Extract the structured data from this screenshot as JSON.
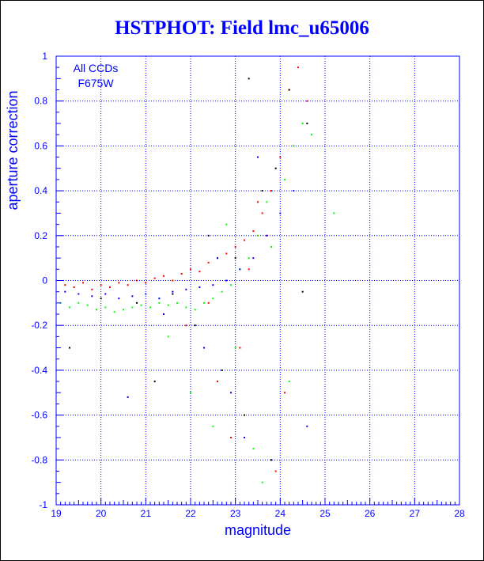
{
  "chart_data": {
    "type": "scatter",
    "title": "HSTPHOT: Field lmc_u65006",
    "xlabel": "magnitude",
    "ylabel": "aperture correction",
    "xlim": [
      19,
      28
    ],
    "ylim": [
      -1,
      1
    ],
    "x_ticks": [
      "19",
      "20",
      "21",
      "22",
      "23",
      "24",
      "25",
      "26",
      "27",
      "28"
    ],
    "y_ticks": [
      "-1",
      "-0.8",
      "-0.6",
      "-0.4",
      "-0.2",
      "0",
      "0.2",
      "0.4",
      "0.6",
      "0.8",
      "1"
    ],
    "grid": true,
    "annotations": [
      "All CCDs",
      "F675W"
    ],
    "series_colors": [
      "#ff0000",
      "#00ff00",
      "#0000ff",
      "#000000"
    ],
    "series": [
      {
        "color": "#ff0000",
        "x": [
          19.2,
          19.4,
          19.6,
          19.8,
          20.0,
          20.2,
          20.4,
          20.6,
          20.8,
          21.0,
          21.2,
          21.4,
          21.6,
          21.8,
          22.0,
          22.2,
          22.4,
          22.6,
          22.8,
          23.0,
          23.2,
          23.4,
          23.6,
          23.8,
          24.0,
          24.2,
          24.4,
          24.6,
          22.4,
          23.1,
          23.7,
          24.1,
          22.9,
          23.5,
          24.3,
          21.9,
          22.6,
          23.3,
          23.9
        ],
        "y": [
          -0.02,
          -0.03,
          -0.01,
          -0.04,
          -0.02,
          -0.03,
          -0.01,
          -0.02,
          0.0,
          -0.01,
          0.01,
          0.02,
          0.0,
          0.03,
          0.05,
          0.04,
          0.08,
          0.1,
          0.12,
          0.15,
          0.18,
          0.22,
          0.3,
          0.4,
          0.55,
          0.85,
          0.95,
          0.8,
          -0.1,
          -0.3,
          0.2,
          -0.5,
          -0.7,
          0.35,
          0.6,
          -0.2,
          -0.45,
          0.05,
          -0.85
        ]
      },
      {
        "color": "#00ff00",
        "x": [
          19.1,
          19.3,
          19.5,
          19.7,
          19.9,
          20.1,
          20.3,
          20.5,
          20.7,
          20.9,
          21.1,
          21.3,
          21.5,
          21.7,
          21.9,
          22.1,
          22.3,
          22.5,
          22.7,
          22.9,
          23.1,
          23.3,
          23.5,
          23.7,
          23.9,
          24.1,
          24.3,
          24.5,
          24.7,
          25.2,
          22.0,
          22.5,
          23.0,
          23.4,
          23.8,
          24.2,
          21.5,
          22.8,
          23.6
        ],
        "y": [
          -0.1,
          -0.12,
          -0.1,
          -0.11,
          -0.13,
          -0.12,
          -0.14,
          -0.13,
          -0.12,
          -0.11,
          -0.12,
          -0.1,
          -0.11,
          -0.1,
          -0.12,
          -0.13,
          -0.1,
          -0.08,
          -0.05,
          -0.02,
          0.05,
          0.1,
          0.2,
          0.35,
          0.5,
          0.45,
          0.6,
          0.7,
          0.65,
          0.3,
          -0.5,
          -0.65,
          -0.3,
          -0.75,
          0.15,
          -0.45,
          -0.25,
          0.25,
          -0.9
        ]
      },
      {
        "color": "#0000ff",
        "x": [
          19.2,
          19.5,
          19.8,
          20.1,
          20.4,
          20.7,
          21.0,
          21.3,
          21.6,
          21.9,
          22.2,
          22.5,
          22.8,
          23.1,
          23.4,
          23.7,
          24.0,
          24.3,
          22.3,
          22.9,
          23.5,
          21.4,
          24.6,
          23.2,
          22.6,
          20.6
        ],
        "y": [
          -0.05,
          -0.06,
          -0.07,
          -0.06,
          -0.08,
          -0.07,
          -0.06,
          -0.08,
          -0.05,
          -0.04,
          -0.03,
          -0.02,
          0.0,
          0.05,
          0.1,
          0.2,
          0.3,
          0.4,
          -0.3,
          -0.5,
          0.55,
          -0.15,
          -0.65,
          -0.7,
          0.1,
          -0.52
        ]
      },
      {
        "color": "#000000",
        "x": [
          19.3,
          20.0,
          20.8,
          21.6,
          22.1,
          22.7,
          23.0,
          23.3,
          23.6,
          23.9,
          24.2,
          24.5,
          23.2,
          22.4,
          23.8,
          24.6,
          21.2
        ],
        "y": [
          -0.3,
          -0.08,
          -0.1,
          -0.06,
          -0.2,
          -0.4,
          0.1,
          0.9,
          0.4,
          0.5,
          0.85,
          -0.05,
          -0.6,
          0.2,
          -0.8,
          0.7,
          -0.45
        ]
      }
    ]
  }
}
